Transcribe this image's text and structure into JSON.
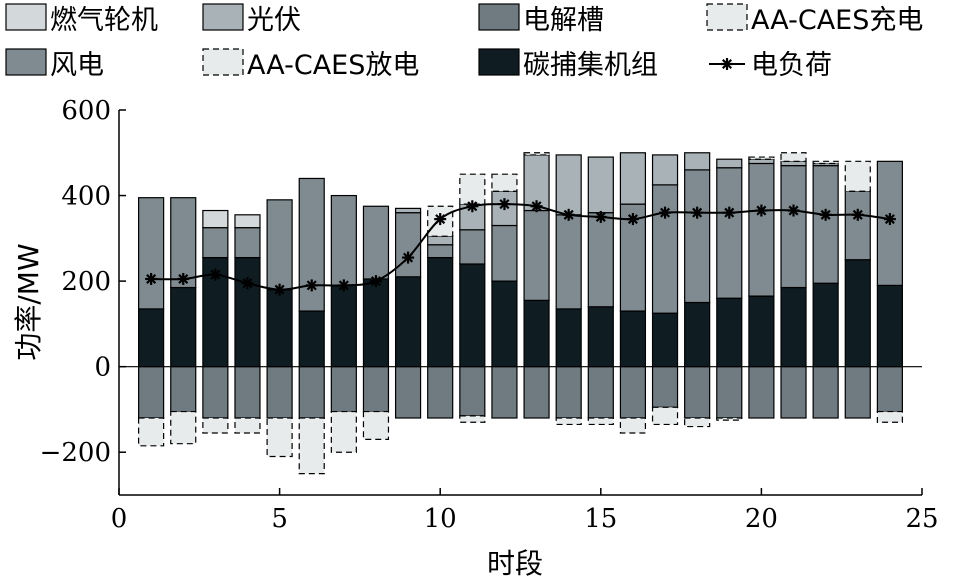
{
  "chart_data": {
    "type": "bar",
    "stacked": true,
    "xlabel": "时段",
    "ylabel": "功率/MW",
    "xlim": [
      0,
      25
    ],
    "ylim": [
      -300,
      600
    ],
    "xticks": [
      0,
      5,
      10,
      15,
      20,
      25
    ],
    "yticks": [
      600,
      400,
      200,
      0,
      -200
    ],
    "ytick_labels": [
      "600",
      "400",
      "200",
      "0",
      "−200"
    ],
    "grid": false,
    "legend_position": "top",
    "x": [
      1,
      2,
      3,
      4,
      5,
      6,
      7,
      8,
      9,
      10,
      11,
      12,
      13,
      14,
      15,
      16,
      17,
      18,
      19,
      20,
      21,
      22,
      23,
      24
    ],
    "series": [
      {
        "key": "gas",
        "name": "燃气轮机",
        "color": "#d3d8da",
        "dashed": false,
        "side": "positive",
        "values": [
          0,
          0,
          40,
          30,
          0,
          0,
          0,
          0,
          0,
          0,
          0,
          0,
          0,
          0,
          0,
          0,
          0,
          0,
          0,
          0,
          0,
          0,
          0,
          0
        ]
      },
      {
        "key": "pv",
        "name": "光伏",
        "color": "#a9b3b7",
        "dashed": false,
        "side": "positive",
        "values": [
          0,
          0,
          0,
          0,
          0,
          0,
          0,
          0,
          10,
          20,
          60,
          80,
          130,
          140,
          130,
          120,
          70,
          40,
          20,
          10,
          10,
          5,
          0,
          0
        ]
      },
      {
        "key": "electrolyzer",
        "name": "电解槽",
        "color": "#6f7b80",
        "dashed": false,
        "side": "negative",
        "values": [
          -120,
          -105,
          -120,
          -120,
          -120,
          -120,
          -105,
          -105,
          -120,
          -120,
          -115,
          -120,
          -120,
          -120,
          -120,
          -120,
          -95,
          -120,
          -120,
          -120,
          -120,
          -120,
          -120,
          -105
        ]
      },
      {
        "key": "caes_charge",
        "name": "AA-CAES充电",
        "color": "#e7ebec",
        "dashed": true,
        "side": "negative",
        "values": [
          -65,
          -75,
          -35,
          -35,
          -90,
          -130,
          -95,
          -65,
          0,
          0,
          -15,
          0,
          0,
          -15,
          -15,
          -35,
          -40,
          -20,
          -5,
          0,
          0,
          0,
          0,
          -25
        ]
      },
      {
        "key": "wind",
        "name": "风电",
        "color": "#7f8b90",
        "dashed": false,
        "side": "positive",
        "values": [
          260,
          210,
          70,
          70,
          210,
          310,
          210,
          170,
          150,
          30,
          80,
          130,
          210,
          220,
          220,
          250,
          300,
          310,
          305,
          310,
          285,
          275,
          160,
          290
        ]
      },
      {
        "key": "caes_discharge",
        "name": "AA-CAES放电",
        "color": "#e7ebec",
        "dashed": true,
        "side": "positive",
        "values": [
          0,
          0,
          0,
          0,
          0,
          0,
          0,
          0,
          0,
          70,
          70,
          40,
          5,
          0,
          0,
          0,
          0,
          0,
          0,
          5,
          20,
          5,
          70,
          0
        ]
      },
      {
        "key": "ccs_unit",
        "name": "碳捕集机组",
        "color": "#0f1c22",
        "dashed": false,
        "side": "positive",
        "values": [
          135,
          185,
          255,
          255,
          180,
          130,
          190,
          205,
          210,
          255,
          240,
          200,
          155,
          135,
          140,
          130,
          125,
          150,
          160,
          165,
          185,
          195,
          250,
          190
        ]
      },
      {
        "key": "load",
        "name": "电负荷",
        "color": "#000000",
        "type": "line",
        "side": "line",
        "values": [
          205,
          205,
          215,
          195,
          180,
          190,
          190,
          200,
          255,
          345,
          375,
          380,
          375,
          355,
          350,
          345,
          360,
          360,
          360,
          365,
          365,
          355,
          355,
          345
        ]
      }
    ]
  }
}
